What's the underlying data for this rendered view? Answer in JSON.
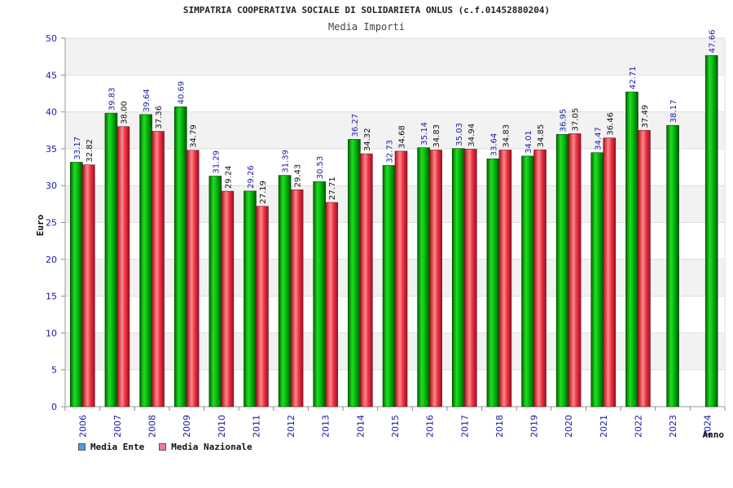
{
  "header": {
    "title": "SIMPATRIA COOPERATIVA SOCIALE DI SOLIDARIETA ONLUS (c.f.01452880204)",
    "subtitle": "Media Importi"
  },
  "legend": {
    "items": [
      {
        "label": "Media Ente",
        "color": "#5599ee"
      },
      {
        "label": "Media Nazionale",
        "color": "#ee77aa"
      }
    ]
  },
  "chart_data": {
    "type": "bar",
    "title": "Media Importi",
    "xlabel": "Anno",
    "ylabel": "Euro",
    "ylim": [
      0,
      50
    ],
    "yticks": [
      0,
      5,
      10,
      15,
      20,
      25,
      30,
      35,
      40,
      45,
      50
    ],
    "grid": "horizontal bands",
    "legend_position": "bottom-left",
    "categories": [
      "2006",
      "2007",
      "2008",
      "2009",
      "2010",
      "2011",
      "2012",
      "2013",
      "2014",
      "2015",
      "2016",
      "2017",
      "2018",
      "2019",
      "2020",
      "2021",
      "2022",
      "2023",
      "2024"
    ],
    "series": [
      {
        "name": "Media Ente",
        "color": "#00aa22",
        "values": [
          33.17,
          39.83,
          39.64,
          40.69,
          31.29,
          29.26,
          31.39,
          30.53,
          36.27,
          32.73,
          35.14,
          35.03,
          33.64,
          34.01,
          36.95,
          34.47,
          42.71,
          38.17,
          47.66
        ],
        "labels": [
          "33.17",
          "39.83",
          "39.64",
          "40.69",
          "31.29",
          "29.26",
          "31.39",
          "30.53",
          "36.27",
          "32.73",
          "35.14",
          "35.03",
          "33.64",
          "34.01",
          "36.95",
          "34.47",
          "42.71",
          "38.17",
          "47.66"
        ]
      },
      {
        "name": "Media Nazionale",
        "color": "#dd2233",
        "values": [
          32.82,
          38.0,
          37.36,
          34.79,
          29.24,
          27.19,
          29.43,
          27.71,
          34.32,
          34.68,
          34.83,
          34.94,
          34.83,
          34.85,
          37.05,
          36.46,
          37.49,
          null,
          null
        ],
        "labels": [
          "32.82",
          "38.00",
          "37.36",
          "34.79",
          "29.24",
          "27.19",
          "29.43",
          "27.71",
          "34.32",
          "34.68",
          "34.83",
          "34.94",
          "34.83",
          "34.85",
          "37.05",
          "36.46",
          "37.49",
          null,
          null
        ]
      }
    ]
  }
}
